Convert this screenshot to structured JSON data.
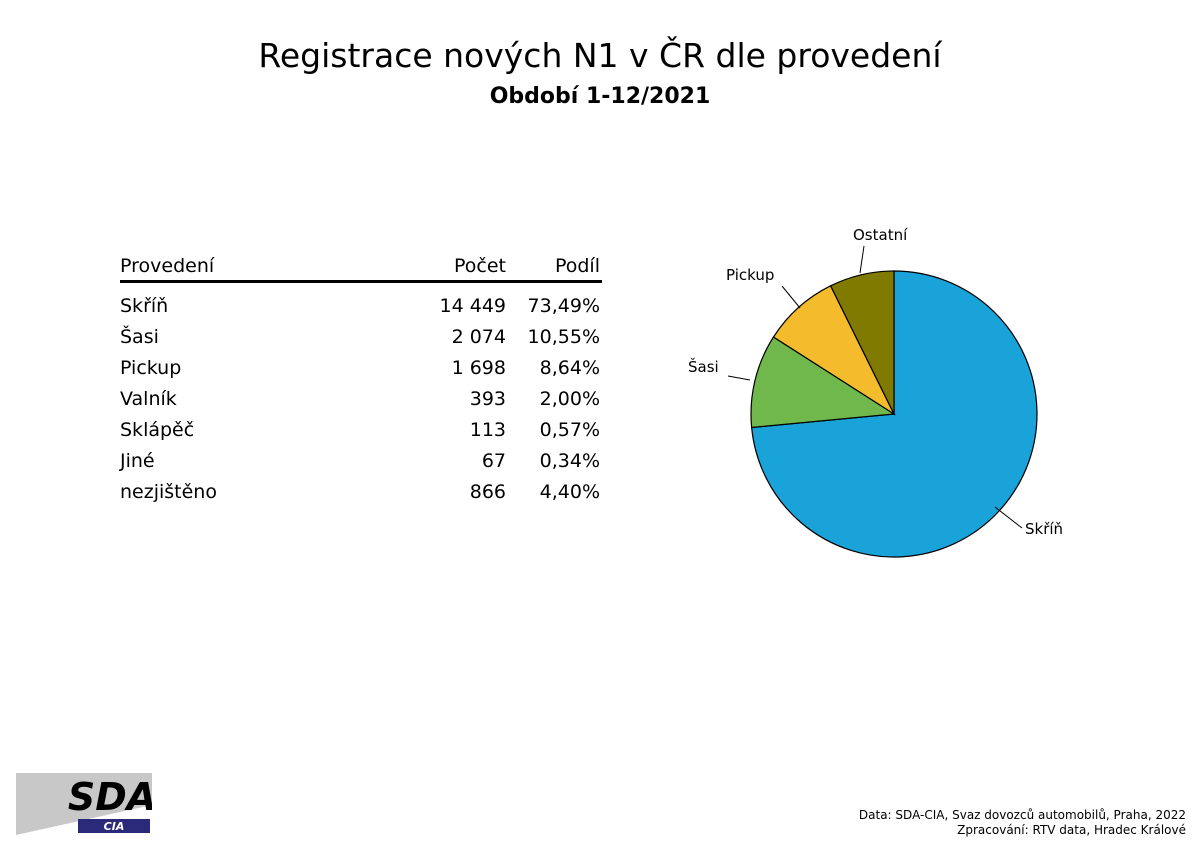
{
  "header": {
    "title": "Registrace nových N1 v ČR dle provedení",
    "subtitle": "Období 1-12/2021"
  },
  "table": {
    "headers": [
      "Provedení",
      "Počet",
      "Podíl"
    ],
    "rows": [
      {
        "name": "Skříň",
        "count": "14 449",
        "share": "73,49%"
      },
      {
        "name": "Šasi",
        "count": "2 074",
        "share": "10,55%"
      },
      {
        "name": "Pickup",
        "count": "1 698",
        "share": "8,64%"
      },
      {
        "name": "Valník",
        "count": "393",
        "share": "2,00%"
      },
      {
        "name": "Sklápěč",
        "count": "113",
        "share": "0,57%"
      },
      {
        "name": "Jiné",
        "count": "67",
        "share": "0,34%"
      },
      {
        "name": "nezjištěno",
        "count": "866",
        "share": "4,40%"
      }
    ]
  },
  "chart_data": {
    "type": "pie",
    "categories": [
      "Skříň",
      "Šasi",
      "Pickup",
      "Ostatní"
    ],
    "values": [
      73.49,
      10.55,
      8.64,
      7.31
    ],
    "colors": [
      "#1aa3d9",
      "#70b84b",
      "#f4bc2d",
      "#817a00"
    ],
    "legend": "labels-outside"
  },
  "footer": {
    "source_line1": "Data: SDA-CIA, Svaz dovozců automobilů, Praha, 2022",
    "source_line2": "Zpracování: RTV data, Hradec Králové",
    "logo_main": "SDA",
    "logo_sub": "CIA"
  }
}
